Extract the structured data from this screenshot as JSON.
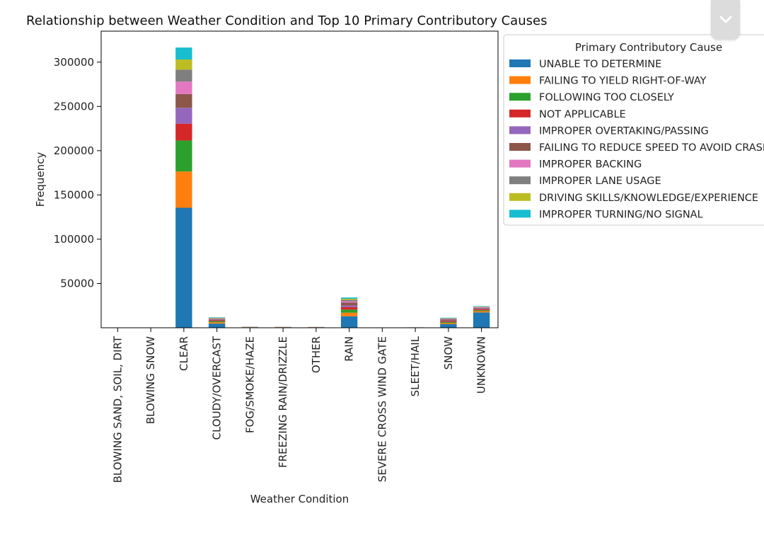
{
  "chart_data": {
    "type": "bar",
    "stacked": true,
    "title": "Relationship between Weather Condition and Top 10 Primary Contributory Causes",
    "xlabel": "Weather Condition",
    "ylabel": "Frequency",
    "ylim": [
      0,
      335000
    ],
    "yticks": [
      50000,
      100000,
      150000,
      200000,
      250000,
      300000
    ],
    "ytick_labels": [
      "50000",
      "100000",
      "150000",
      "200000",
      "250000",
      "300000"
    ],
    "grid": false,
    "legend_position": "outside-top-right",
    "legend_title": "Primary Contributory Cause",
    "categories": [
      "BLOWING SAND, SOIL, DIRT",
      "BLOWING SNOW",
      "CLEAR",
      "CLOUDY/OVERCAST",
      "FOG/SMOKE/HAZE",
      "FREEZING RAIN/DRIZZLE",
      "OTHER",
      "RAIN",
      "SEVERE CROSS WIND GATE",
      "SLEET/HAIL",
      "SNOW",
      "UNKNOWN"
    ],
    "series": [
      {
        "name": "UNABLE TO DETERMINE",
        "color": "#1f77b4",
        "values": [
          50,
          100,
          135500,
          4700,
          600,
          350,
          350,
          13000,
          60,
          150,
          4100,
          17300
        ]
      },
      {
        "name": "FAILING TO YIELD RIGHT-OF-WAY",
        "color": "#ff7f0e",
        "values": [
          10,
          30,
          41000,
          1500,
          150,
          130,
          150,
          4000,
          20,
          60,
          1100,
          1500
        ]
      },
      {
        "name": "FOLLOWING TOO CLOSELY",
        "color": "#2ca02c",
        "values": [
          10,
          30,
          35000,
          1300,
          100,
          120,
          100,
          3500,
          15,
          60,
          1100,
          1000
        ]
      },
      {
        "name": "NOT APPLICABLE",
        "color": "#d62728",
        "values": [
          5,
          20,
          19000,
          900,
          80,
          70,
          80,
          2700,
          10,
          40,
          900,
          1200
        ]
      },
      {
        "name": "IMPROPER OVERTAKING/PASSING",
        "color": "#9467bd",
        "values": [
          5,
          15,
          18000,
          700,
          60,
          50,
          60,
          1800,
          10,
          30,
          500,
          700
        ]
      },
      {
        "name": "FAILING TO REDUCE SPEED TO AVOID CRASH",
        "color": "#8c564b",
        "values": [
          20,
          60,
          15500,
          700,
          80,
          200,
          40,
          3500,
          5,
          80,
          1700,
          700
        ]
      },
      {
        "name": "IMPROPER BACKING",
        "color": "#e377c2",
        "values": [
          5,
          15,
          14000,
          500,
          50,
          40,
          60,
          1500,
          5,
          30,
          600,
          600
        ]
      },
      {
        "name": "IMPROPER LANE USAGE",
        "color": "#7f7f7f",
        "values": [
          5,
          15,
          13500,
          500,
          50,
          40,
          50,
          1500,
          5,
          30,
          500,
          500
        ]
      },
      {
        "name": "DRIVING SKILLS/KNOWLEDGE/EXPERIENCE",
        "color": "#bcbd22",
        "values": [
          5,
          15,
          11500,
          400,
          40,
          30,
          40,
          1300,
          5,
          20,
          400,
          400
        ]
      },
      {
        "name": "IMPROPER TURNING/NO SIGNAL",
        "color": "#17becf",
        "values": [
          5,
          15,
          13500,
          500,
          40,
          30,
          50,
          1400,
          5,
          20,
          500,
          500
        ]
      }
    ]
  },
  "ui": {
    "collapse_icon": "chevron-down-icon"
  }
}
